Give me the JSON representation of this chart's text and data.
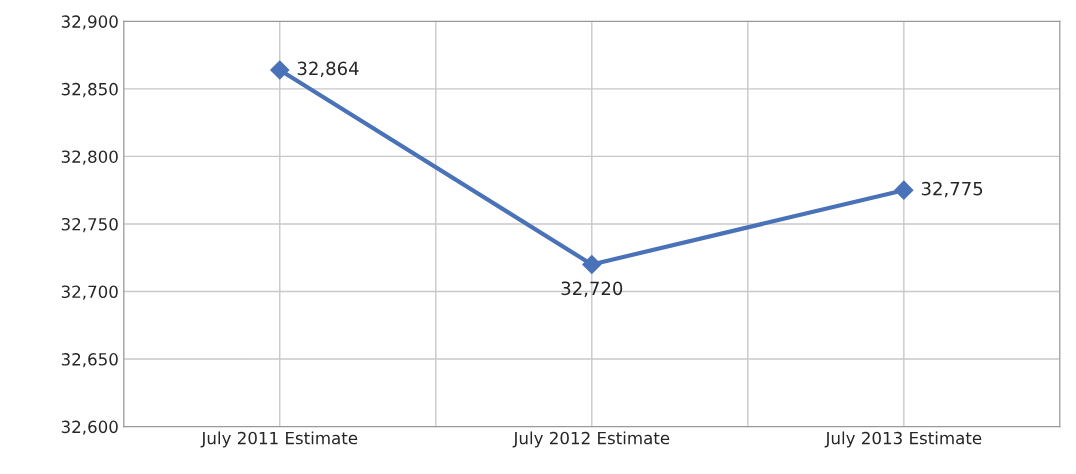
{
  "chart_data": {
    "type": "line",
    "categories": [
      "July 2011 Estimate",
      "July 2012 Estimate",
      "July 2013 Estimate"
    ],
    "series": [
      {
        "color": "#4a72b8",
        "values": [
          32864,
          32720,
          32775
        ],
        "value_labels": [
          "32,864",
          "32,720",
          "32,775"
        ]
      }
    ],
    "ylim": [
      32600,
      32900
    ],
    "yticks": [
      {
        "value": 32600,
        "label": "32,600"
      },
      {
        "value": 32650,
        "label": "32,650"
      },
      {
        "value": 32700,
        "label": "32,700"
      },
      {
        "value": 32750,
        "label": "32,750"
      },
      {
        "value": 32800,
        "label": "32,800"
      },
      {
        "value": 32850,
        "label": "32,850"
      },
      {
        "value": 32900,
        "label": "32,900"
      }
    ],
    "grid": true,
    "marker": "diamond",
    "line_style": "solid",
    "legend": false
  }
}
